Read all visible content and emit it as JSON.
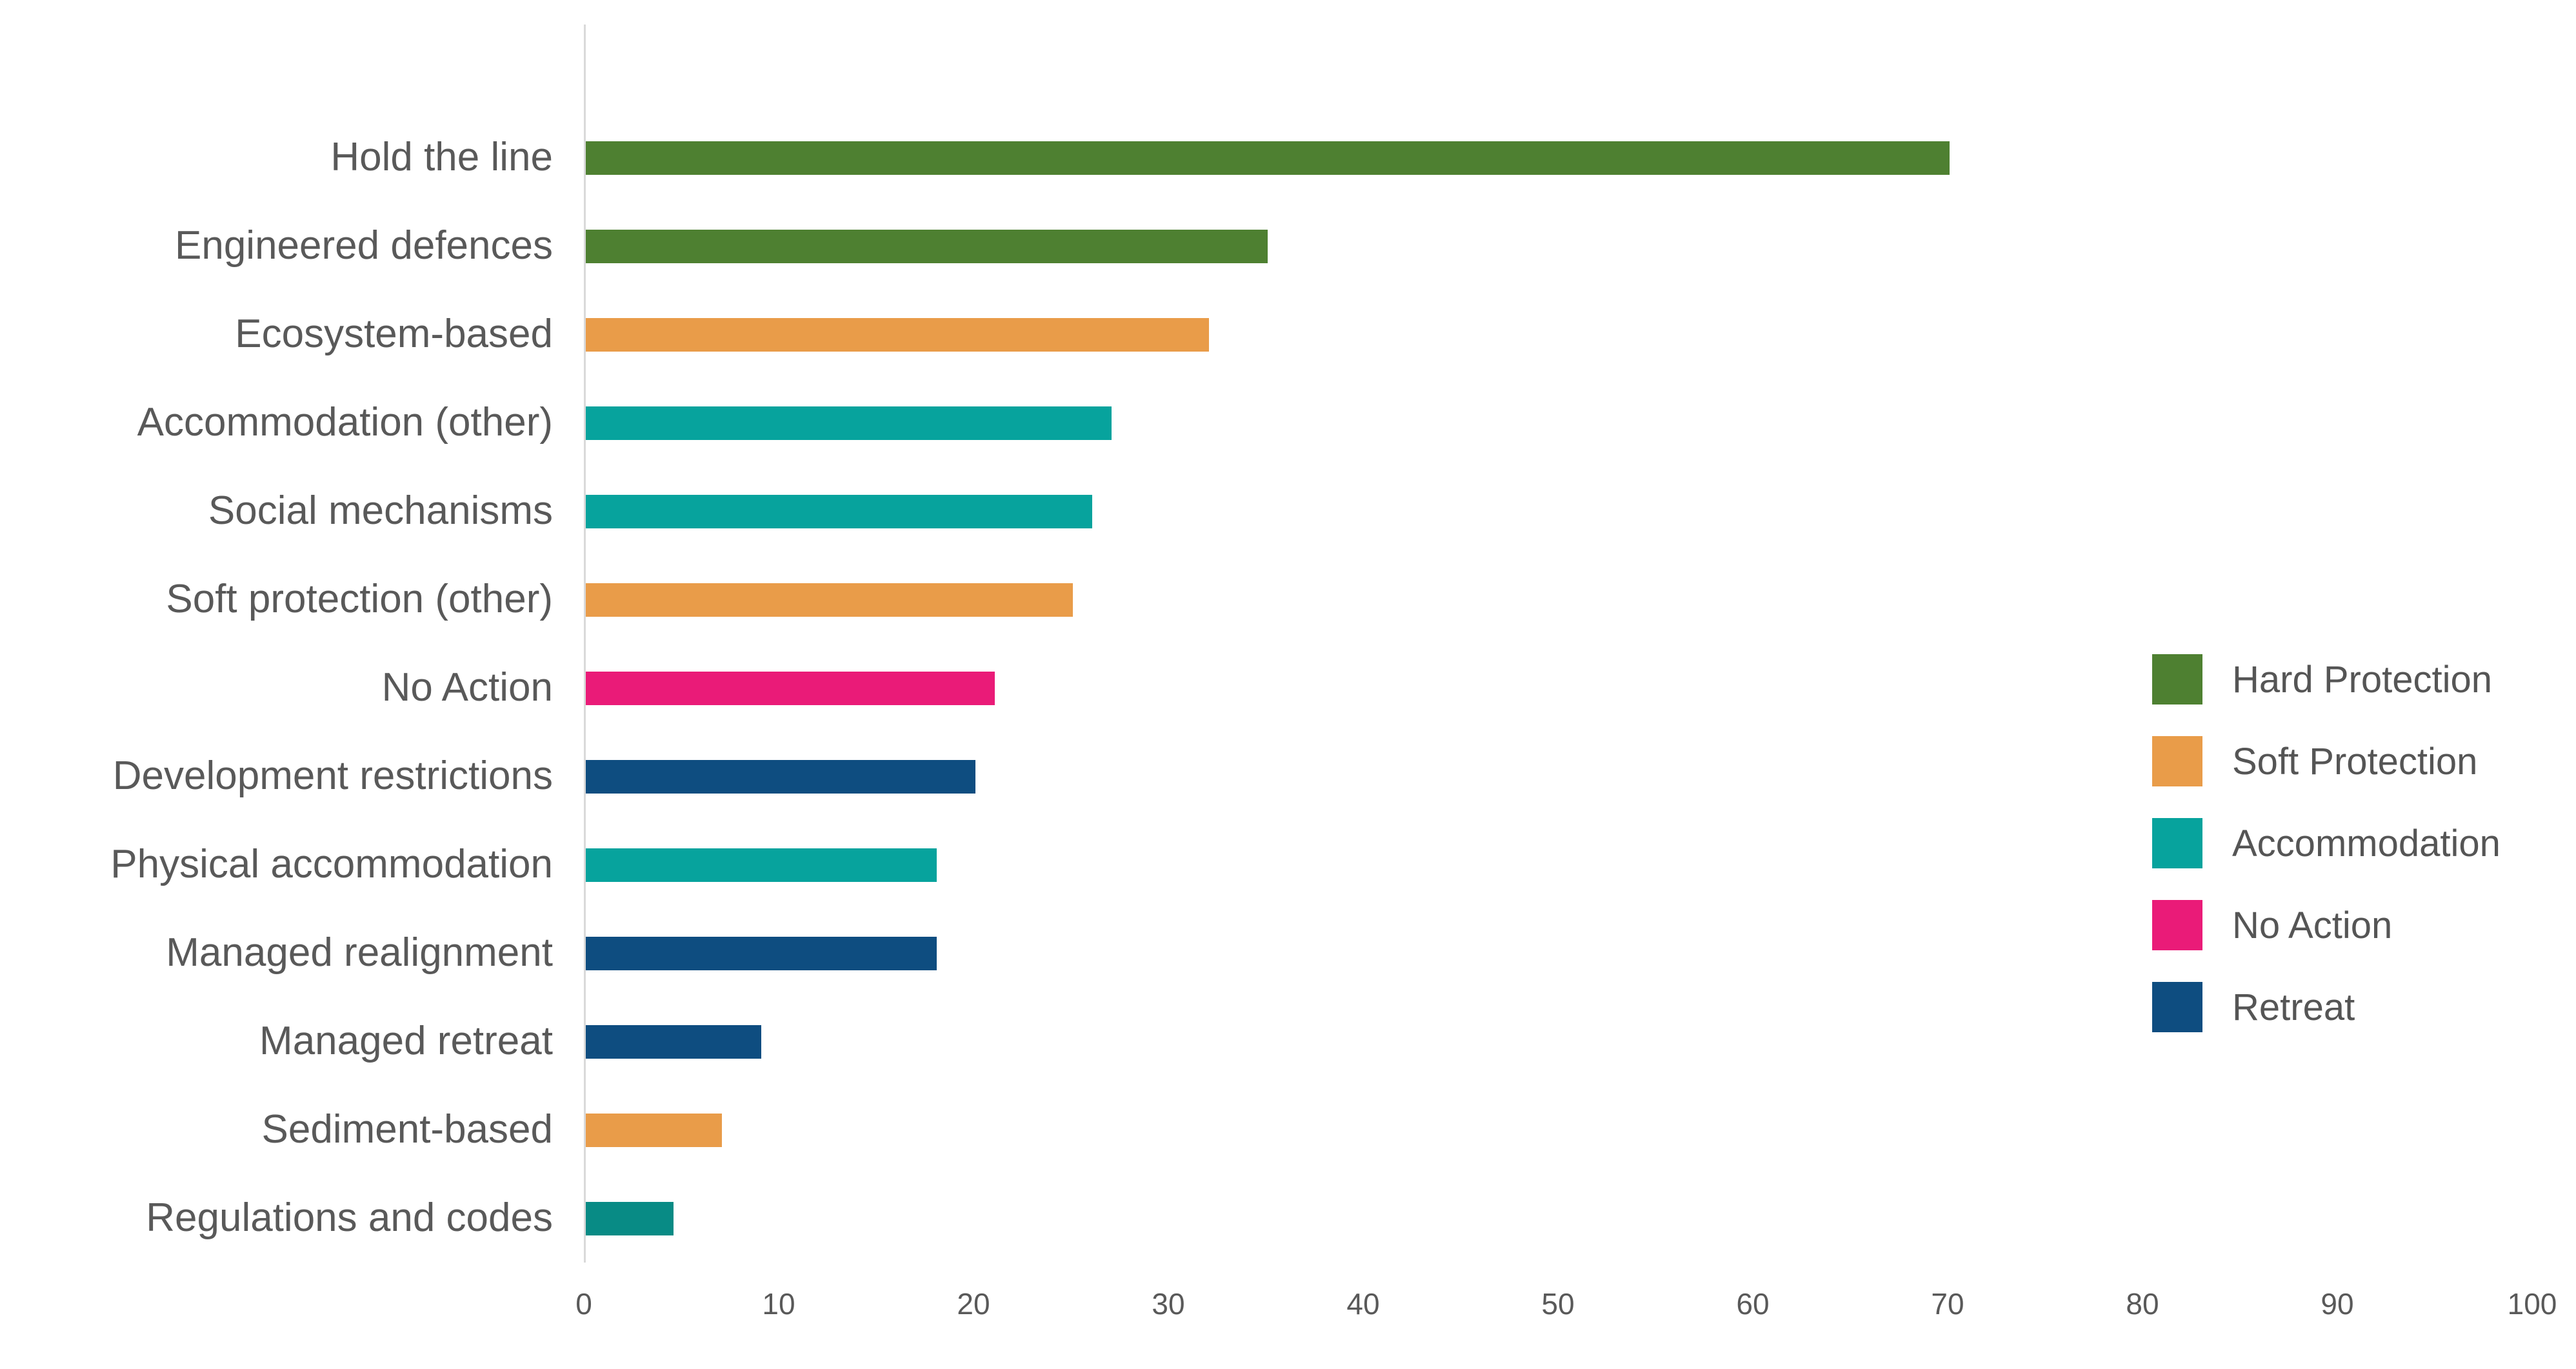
{
  "chart_data": {
    "type": "bar",
    "orientation": "horizontal",
    "title": "",
    "xlabel": "",
    "ylabel": "",
    "categories": [
      "Hold the line",
      "Engineered defences",
      "Ecosystem-based",
      "Accommodation (other)",
      "Social mechanisms",
      "Soft protection (other)",
      "No Action",
      "Development restrictions",
      "Physical accommodation",
      "Managed realignment",
      "Managed retreat",
      "Sediment-based",
      "Regulations and codes"
    ],
    "values": [
      70,
      35,
      32,
      27,
      26,
      25,
      21,
      20,
      18,
      18,
      9,
      7,
      4.5
    ],
    "bar_groups": [
      "Hard Protection",
      "Hard Protection",
      "Soft Protection",
      "Accommodation",
      "Accommodation",
      "Soft Protection",
      "No Action",
      "Retreat",
      "Accommodation",
      "Retreat",
      "Retreat",
      "Soft Protection",
      "Accommodation"
    ],
    "bar_colors": [
      "#4E8031",
      "#4E8031",
      "#E99C49",
      "#07A39D",
      "#07A39D",
      "#E99C49",
      "#EA1B78",
      "#0E4D80",
      "#07A39D",
      "#0E4D80",
      "#0E4D80",
      "#E99C49",
      "#088B85"
    ],
    "xlim": [
      0,
      100
    ],
    "x_ticks": [
      0,
      10,
      20,
      30,
      40,
      50,
      60,
      70,
      80,
      90,
      100
    ],
    "grid": false,
    "legend": {
      "position": "center-right",
      "entries": [
        {
          "label": "Hard Protection",
          "color": "#4E8031"
        },
        {
          "label": "Soft Protection",
          "color": "#E99C49"
        },
        {
          "label": "Accommodation",
          "color": "#07A39D"
        },
        {
          "label": "No Action",
          "color": "#EA1B78"
        },
        {
          "label": "Retreat",
          "color": "#0E4D80"
        }
      ]
    }
  },
  "style": {
    "background": "#FFFFFF",
    "axis_line_color": "#D9D9D9",
    "text_color": "#595959"
  }
}
